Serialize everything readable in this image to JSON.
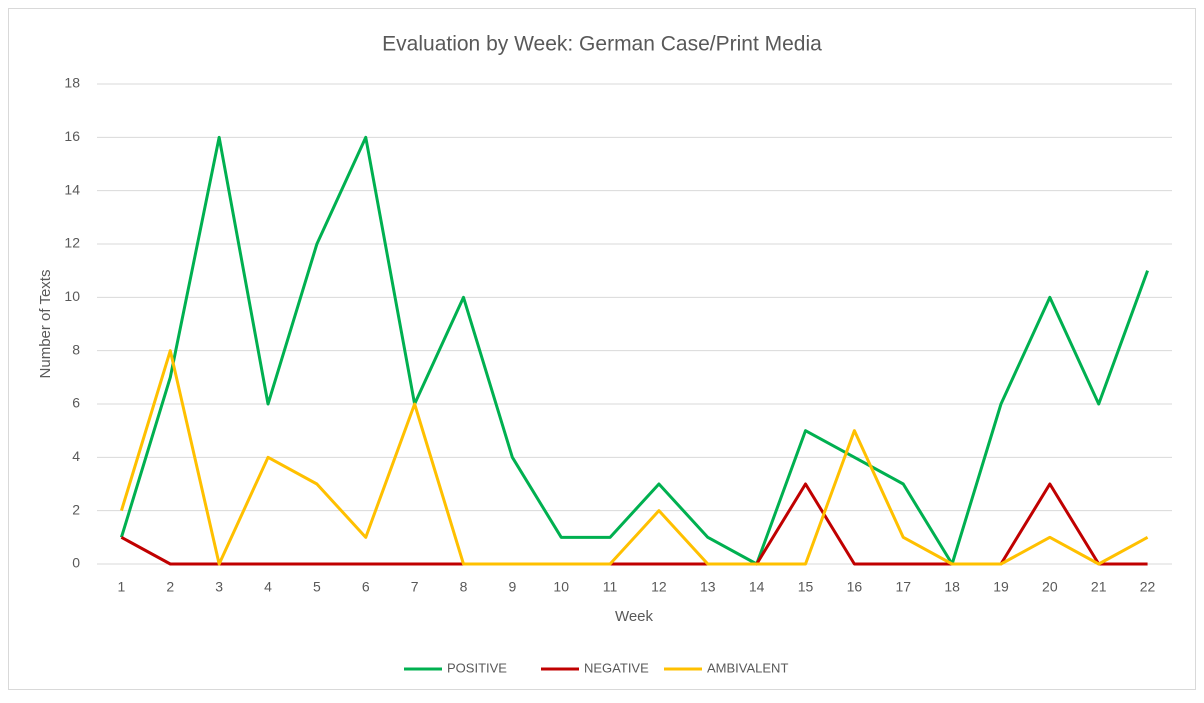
{
  "chart_data": {
    "type": "line",
    "title": "Evaluation by Week: German Case/Print Media",
    "x_label": "Week",
    "y_label": "Number of Texts",
    "categories": [
      1,
      2,
      3,
      4,
      5,
      6,
      7,
      8,
      9,
      10,
      11,
      12,
      13,
      14,
      15,
      16,
      17,
      18,
      19,
      20,
      21,
      22
    ],
    "series": [
      {
        "name": "POSITIVE",
        "color": "#00b050",
        "values": [
          1,
          7,
          16,
          6,
          12,
          16,
          6,
          10,
          4,
          1,
          1,
          3,
          1,
          0,
          5,
          4,
          3,
          0,
          6,
          10,
          6,
          11
        ]
      },
      {
        "name": "NEGATIVE",
        "color": "#c00000",
        "values": [
          1,
          0,
          0,
          0,
          0,
          0,
          0,
          0,
          0,
          0,
          0,
          0,
          0,
          0,
          3,
          0,
          0,
          0,
          0,
          3,
          0,
          0
        ]
      },
      {
        "name": "AMBIVALENT",
        "color": "#ffc000",
        "values": [
          2,
          8,
          0,
          4,
          3,
          1,
          6,
          0,
          0,
          0,
          0,
          2,
          0,
          0,
          0,
          5,
          1,
          0,
          0,
          1,
          0,
          1
        ]
      }
    ],
    "ylim": [
      0,
      18
    ],
    "yticks": [
      0,
      2,
      4,
      6,
      8,
      10,
      12,
      14,
      16,
      18
    ],
    "grid": true,
    "legend": "bottom"
  }
}
